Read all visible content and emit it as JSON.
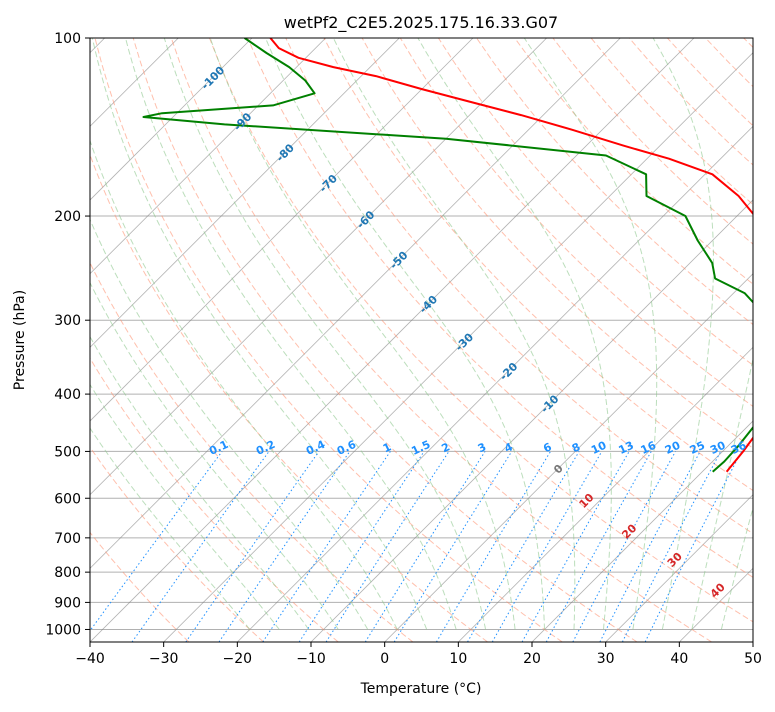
{
  "chart_data": {
    "type": "line",
    "title": "wetPf2_C2E5.2025.175.16.33.G07",
    "xlabel": "Temperature (°C)",
    "ylabel": "Pressure (hPa)",
    "xlim": [
      -40,
      50
    ],
    "ylim": [
      1050,
      100
    ],
    "y_scale": "log",
    "skew": true,
    "grid": true,
    "xticks": [
      -40,
      -30,
      -20,
      -10,
      0,
      10,
      20,
      30,
      40,
      50
    ],
    "yticks": [
      100,
      200,
      300,
      400,
      500,
      600,
      700,
      800,
      900,
      1000
    ],
    "series": [
      {
        "color": "#ff0000",
        "points": [
          [
            23.3,
            541
          ],
          [
            22.8,
            500
          ],
          [
            21.8,
            450
          ],
          [
            21.1,
            410
          ],
          [
            20.3,
            385
          ],
          [
            19.0,
            360
          ],
          [
            16.8,
            330
          ],
          [
            13.0,
            300
          ],
          [
            9.0,
            270
          ],
          [
            1.0,
            230
          ],
          [
            -6.0,
            205
          ],
          [
            -12.5,
            185
          ],
          [
            -19.0,
            170
          ],
          [
            -27.0,
            160
          ],
          [
            -35.0,
            152
          ],
          [
            -44.0,
            143
          ],
          [
            -53.0,
            135
          ],
          [
            -62.0,
            128
          ],
          [
            -70.0,
            122
          ],
          [
            -78.0,
            116
          ],
          [
            -85.0,
            112
          ],
          [
            -91.0,
            108
          ],
          [
            -95.0,
            104
          ],
          [
            -97.5,
            100
          ]
        ]
      },
      {
        "color": "#008000",
        "points": [
          [
            21.4,
            541
          ],
          [
            21.6,
            520
          ],
          [
            21.4,
            490
          ],
          [
            20.8,
            450
          ],
          [
            18.9,
            420
          ],
          [
            18.2,
            405
          ],
          [
            19.1,
            385
          ],
          [
            18.2,
            375
          ],
          [
            17.0,
            360
          ],
          [
            14.0,
            340
          ],
          [
            10.0,
            315
          ],
          [
            6.3,
            290
          ],
          [
            1.5,
            270
          ],
          [
            -4.5,
            255
          ],
          [
            -7.0,
            240
          ],
          [
            -12.0,
            220
          ],
          [
            -17.0,
            200
          ],
          [
            -25.0,
            185
          ],
          [
            -28.0,
            170
          ],
          [
            -36.0,
            158
          ],
          [
            -60.0,
            148
          ],
          [
            -92.0,
            140
          ],
          [
            -104.0,
            136
          ],
          [
            -102.0,
            134
          ],
          [
            -88.0,
            130
          ],
          [
            -84.0,
            124
          ],
          [
            -87.0,
            118
          ],
          [
            -91.0,
            112
          ],
          [
            -96.0,
            106
          ],
          [
            -101.0,
            100
          ]
        ]
      }
    ],
    "mixing_ratio_labels": [
      "0.1",
      "0.2",
      "0.4",
      "0.6",
      "1",
      "1.5",
      "2",
      "3",
      "4",
      "6",
      "8",
      "10",
      "13",
      "16",
      "20",
      "25",
      "30",
      "36"
    ],
    "mixing_ratio_values": [
      0.1,
      0.2,
      0.4,
      0.6,
      1,
      1.5,
      2,
      3,
      4,
      6,
      8,
      10,
      13,
      16,
      20,
      25,
      30,
      36
    ],
    "lcl_isotherm_labels": [
      "-100",
      "-90",
      "-80",
      "-70",
      "-60",
      "-50",
      "-40",
      "-30",
      "-20",
      "-10",
      "0"
    ],
    "lcl_isotherm_values": [
      -100,
      -90,
      -80,
      -70,
      -60,
      -50,
      -40,
      -30,
      -20,
      -10,
      0
    ],
    "moist_adiabat_labels": [
      "10",
      "20",
      "30",
      "40"
    ],
    "moist_adiabat_values": [
      10,
      20,
      30,
      40
    ],
    "colors": {
      "temperature": "#ff0000",
      "dewpoint": "#008000",
      "isotherm": "#808080",
      "dry_adiabat": "#ff8c69",
      "moist_adiabat": "#90c890",
      "mixing_ratio": "#1e90ff",
      "lcl_isotherm_label": "#1f77b4",
      "moist_label": "#d62728",
      "curve": "#d2b48c"
    }
  }
}
